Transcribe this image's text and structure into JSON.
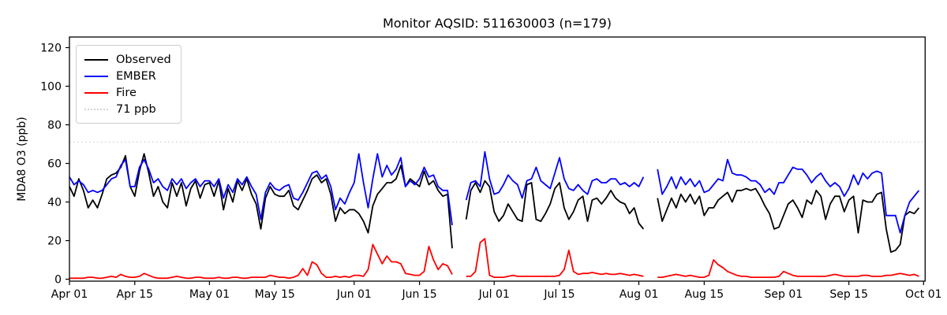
{
  "title": "Monitor AQSID: 511630003 (n=179)",
  "colors": {
    "background": "#ffffff",
    "axis": "#000000",
    "observed": "#000000",
    "ember": "#0000ff",
    "fire": "#ff0000",
    "threshold": "#d3d3d3"
  },
  "chart_data": {
    "type": "line",
    "title": "Monitor AQSID: 511630003 (n=179)",
    "xlabel": "",
    "ylabel": "MDA8 O3 (ppb)",
    "n_label": "n=179",
    "grid": false,
    "legend_position": "upper left",
    "legend": [
      "Observed",
      "EMBER",
      "Fire",
      "71 ppb"
    ],
    "x_tick_labels": [
      "Apr 01",
      "Apr 15",
      "May 01",
      "May 15",
      "Jun 01",
      "Jun 15",
      "Jul 01",
      "Jul 15",
      "Aug 01",
      "Aug 15",
      "Sep 01",
      "Sep 15",
      "Oct 01"
    ],
    "x_tick_day_index": [
      0,
      14,
      30,
      44,
      61,
      75,
      91,
      105,
      122,
      136,
      153,
      167,
      183
    ],
    "x_total_days": 183,
    "y_ticks": [
      0,
      20,
      40,
      60,
      80,
      100,
      120
    ],
    "ylim": [
      -1,
      125.5
    ],
    "threshold": {
      "value": 71,
      "label": "71 ppb",
      "color": "#d3d3d3",
      "style": "dotted"
    },
    "series": [
      {
        "name": "Observed",
        "color": "#000000",
        "values": [
          48,
          43,
          52,
          46,
          37,
          41,
          37,
          44,
          52,
          54,
          55,
          58,
          64,
          48,
          43,
          56,
          65,
          55,
          43,
          48,
          40,
          37,
          50,
          43,
          50,
          38,
          47,
          51,
          42,
          49,
          50,
          43,
          51,
          36,
          47,
          40,
          51,
          46,
          52,
          44,
          39,
          26,
          42,
          48,
          44,
          43,
          43,
          46,
          38,
          36,
          41,
          46,
          52,
          54,
          50,
          52,
          44,
          30,
          37,
          34,
          36,
          36,
          34,
          30,
          24,
          38,
          44,
          47,
          50,
          50,
          52,
          59,
          48,
          52,
          50,
          48,
          56,
          49,
          51,
          46,
          43,
          44,
          16,
          null,
          null,
          31,
          46,
          50,
          45,
          51,
          48,
          35,
          30,
          33,
          39,
          35,
          31,
          30,
          49,
          50,
          31,
          30,
          34,
          39,
          47,
          50,
          37,
          31,
          35,
          41,
          43,
          30,
          41,
          42,
          39,
          42,
          46,
          42,
          40,
          39,
          34,
          37,
          29,
          26,
          null,
          null,
          42,
          30,
          36,
          42,
          37,
          44,
          40,
          44,
          39,
          43,
          33,
          37,
          37,
          41,
          43,
          45,
          40,
          46,
          46,
          47,
          46,
          47,
          43,
          38,
          34,
          26,
          27,
          33,
          39,
          41,
          37,
          32,
          41,
          39,
          46,
          43,
          31,
          39,
          43,
          43,
          35,
          41,
          43,
          24,
          41,
          40,
          40,
          44,
          45,
          26,
          14,
          15,
          18,
          33,
          35,
          34,
          37
        ]
      },
      {
        "name": "EMBER",
        "color": "#0000ff",
        "values": [
          53,
          49,
          51,
          49,
          45,
          46,
          45,
          46,
          49,
          52,
          53,
          59,
          62,
          48,
          48,
          58,
          62,
          57,
          50,
          52,
          48,
          46,
          52,
          49,
          52,
          47,
          50,
          52,
          48,
          51,
          51,
          48,
          52,
          42,
          49,
          45,
          52,
          49,
          53,
          48,
          44,
          31,
          45,
          50,
          47,
          46,
          48,
          49,
          42,
          41,
          45,
          50,
          55,
          56,
          52,
          54,
          48,
          36,
          42,
          39,
          45,
          50,
          65,
          50,
          37,
          52,
          65,
          53,
          59,
          54,
          57,
          63,
          48,
          51,
          49,
          52,
          58,
          53,
          54,
          48,
          46,
          46,
          28,
          null,
          null,
          41,
          50,
          51,
          48,
          66,
          52,
          44,
          45,
          49,
          54,
          51,
          49,
          42,
          51,
          52,
          58,
          51,
          49,
          47,
          55,
          63,
          52,
          47,
          46,
          49,
          46,
          44,
          51,
          52,
          50,
          50,
          52,
          52,
          49,
          50,
          48,
          50,
          48,
          53,
          null,
          null,
          57,
          44,
          48,
          53,
          47,
          53,
          49,
          52,
          48,
          51,
          45,
          46,
          49,
          52,
          51,
          62,
          55,
          54,
          54,
          53,
          51,
          51,
          49,
          45,
          47,
          44,
          50,
          50,
          54,
          58,
          57,
          57,
          54,
          50,
          53,
          55,
          51,
          48,
          50,
          48,
          43,
          47,
          54,
          49,
          55,
          52,
          55,
          56,
          55,
          33,
          33,
          33,
          24,
          33,
          40,
          43,
          46
        ]
      },
      {
        "name": "Fire",
        "color": "#ff0000",
        "values": [
          0.5,
          0.5,
          0.5,
          0.5,
          1,
          1,
          0.5,
          0.5,
          1,
          1.5,
          1,
          2.5,
          1.5,
          1,
          1,
          1.5,
          3,
          2,
          1,
          0.5,
          0.5,
          0.5,
          1,
          1.5,
          1,
          0.5,
          0.5,
          1,
          1,
          0.5,
          0.5,
          0.5,
          1,
          0.5,
          0.5,
          1,
          1,
          0.5,
          0.5,
          1,
          1,
          1,
          1,
          2,
          1.5,
          1,
          1,
          0.5,
          1,
          2,
          5.5,
          2,
          9,
          7.5,
          3,
          1,
          1,
          1.5,
          1,
          1.5,
          1,
          2,
          2,
          1.5,
          5,
          18,
          13,
          8,
          12,
          9,
          9,
          8,
          3,
          2.5,
          2,
          2,
          4,
          17,
          10,
          5,
          8,
          7,
          2.5,
          null,
          null,
          1.5,
          1.5,
          4,
          19,
          21,
          2,
          1,
          1,
          1,
          1.5,
          2,
          1.5,
          1.5,
          1.5,
          1.5,
          1.5,
          1.5,
          1.5,
          1.5,
          1.5,
          2,
          5,
          15,
          4,
          2.5,
          3,
          3,
          3.5,
          3,
          2.5,
          3,
          2.5,
          2.5,
          3,
          2.5,
          2,
          2.5,
          2,
          1.5,
          null,
          null,
          1,
          1,
          1.5,
          2,
          2.5,
          2,
          1.5,
          2,
          1.5,
          1,
          1,
          2,
          10,
          7.5,
          6,
          4,
          3,
          2,
          1.5,
          1.5,
          1,
          1,
          1,
          1,
          1,
          1,
          1.5,
          4,
          3,
          2,
          1.5,
          1.5,
          1.5,
          1.5,
          1.5,
          1.5,
          1.5,
          2,
          2.5,
          2,
          1.5,
          1.5,
          1.5,
          1.5,
          2,
          2,
          1.5,
          1.5,
          1.5,
          2,
          2,
          2.5,
          3,
          2.5,
          2,
          2.5,
          1.5
        ]
      }
    ]
  }
}
